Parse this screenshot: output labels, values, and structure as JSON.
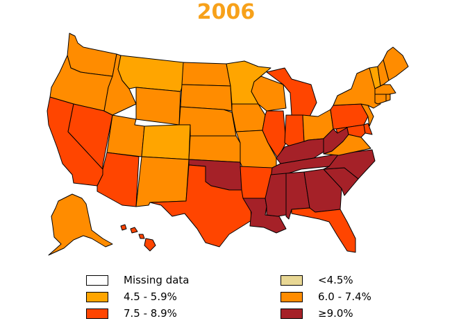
{
  "title": "2006",
  "colors": {
    "title": "#F7A11A",
    "missing": "#FFFFFF",
    "lt45": "#E8D794",
    "c45_59": "#FFA500",
    "c60_74": "#FF8C00",
    "c75_89": "#FF4500",
    "ge90": "#A52128"
  },
  "legend": [
    {
      "label": "Missing data",
      "color_key": "missing"
    },
    {
      "label": "<4.5%",
      "color_key": "lt45"
    },
    {
      "label": "4.5 - 5.9%",
      "color_key": "c45_59"
    },
    {
      "label": "6.0 - 7.4%",
      "color_key": "c60_74"
    },
    {
      "label": "7.5 - 8.9%",
      "color_key": "c75_89"
    },
    {
      "label": "≥9.0%",
      "color_key": "ge90"
    }
  ],
  "states": [
    {
      "id": "WA",
      "color_key": "c60_74"
    },
    {
      "id": "OR",
      "color_key": "c60_74"
    },
    {
      "id": "CA",
      "color_key": "c75_89"
    },
    {
      "id": "NV",
      "color_key": "c75_89"
    },
    {
      "id": "ID",
      "color_key": "c60_74"
    },
    {
      "id": "MT",
      "color_key": "c45_59"
    },
    {
      "id": "WY",
      "color_key": "c60_74"
    },
    {
      "id": "UT",
      "color_key": "c60_74"
    },
    {
      "id": "AZ",
      "color_key": "c75_89"
    },
    {
      "id": "CO",
      "color_key": "c45_59"
    },
    {
      "id": "NM",
      "color_key": "c60_74"
    },
    {
      "id": "ND",
      "color_key": "c60_74"
    },
    {
      "id": "SD",
      "color_key": "c60_74"
    },
    {
      "id": "NE",
      "color_key": "c60_74"
    },
    {
      "id": "KS",
      "color_key": "c60_74"
    },
    {
      "id": "OK",
      "color_key": "ge90"
    },
    {
      "id": "TX",
      "color_key": "c75_89"
    },
    {
      "id": "MN",
      "color_key": "c45_59"
    },
    {
      "id": "IA",
      "color_key": "c60_74"
    },
    {
      "id": "MO",
      "color_key": "c60_74"
    },
    {
      "id": "AR",
      "color_key": "c75_89"
    },
    {
      "id": "LA",
      "color_key": "ge90"
    },
    {
      "id": "WI",
      "color_key": "c60_74"
    },
    {
      "id": "IL",
      "color_key": "c75_89"
    },
    {
      "id": "MI",
      "color_key": "c75_89"
    },
    {
      "id": "IN",
      "color_key": "c75_89"
    },
    {
      "id": "OH",
      "color_key": "c60_74"
    },
    {
      "id": "KY",
      "color_key": "ge90"
    },
    {
      "id": "TN",
      "color_key": "ge90"
    },
    {
      "id": "MS",
      "color_key": "ge90"
    },
    {
      "id": "AL",
      "color_key": "ge90"
    },
    {
      "id": "GA",
      "color_key": "ge90"
    },
    {
      "id": "FL",
      "color_key": "c75_89"
    },
    {
      "id": "SC",
      "color_key": "ge90"
    },
    {
      "id": "NC",
      "color_key": "ge90"
    },
    {
      "id": "VA",
      "color_key": "c60_74"
    },
    {
      "id": "WV",
      "color_key": "ge90"
    },
    {
      "id": "PA",
      "color_key": "c75_89"
    },
    {
      "id": "NY",
      "color_key": "c60_74"
    },
    {
      "id": "VT",
      "color_key": "c45_59"
    },
    {
      "id": "NH",
      "color_key": "c60_74"
    },
    {
      "id": "ME",
      "color_key": "c60_74"
    },
    {
      "id": "MA",
      "color_key": "c60_74"
    },
    {
      "id": "CT",
      "color_key": "c60_74"
    },
    {
      "id": "RI",
      "color_key": "c60_74"
    },
    {
      "id": "NJ",
      "color_key": "c60_74"
    },
    {
      "id": "DE",
      "color_key": "c75_89"
    },
    {
      "id": "MD",
      "color_key": "c75_89"
    },
    {
      "id": "AK",
      "color_key": "c60_74"
    },
    {
      "id": "HI",
      "color_key": "c75_89"
    }
  ]
}
